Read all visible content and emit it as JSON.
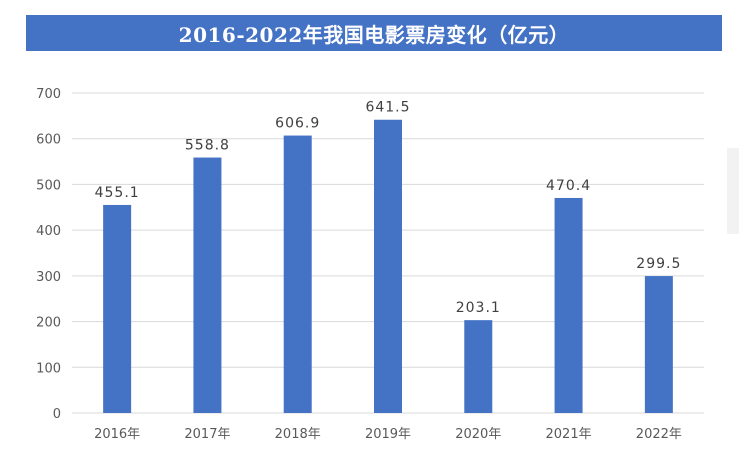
{
  "chart_data": {
    "type": "bar",
    "title": "2016-2022年我国电影票房变化（亿元）",
    "categories": [
      "2016年",
      "2017年",
      "2018年",
      "2019年",
      "2020年",
      "2021年",
      "2022年"
    ],
    "values": [
      455.1,
      558.8,
      606.9,
      641.5,
      203.1,
      470.4,
      299.5
    ],
    "data_labels": [
      "455.1",
      "558.8",
      "606.9",
      "641.5",
      "203.1",
      "470.4",
      "299.5"
    ],
    "xlabel": "",
    "ylabel": "",
    "ylim": [
      0,
      700
    ],
    "yticks": [
      0,
      100,
      200,
      300,
      400,
      500,
      600,
      700
    ],
    "grid": true,
    "legend": "none",
    "colors": {
      "bar": "#4472c4",
      "title_bg": "#4472c4",
      "title_text": "#ffffff",
      "grid": "#d9d9d9"
    }
  }
}
